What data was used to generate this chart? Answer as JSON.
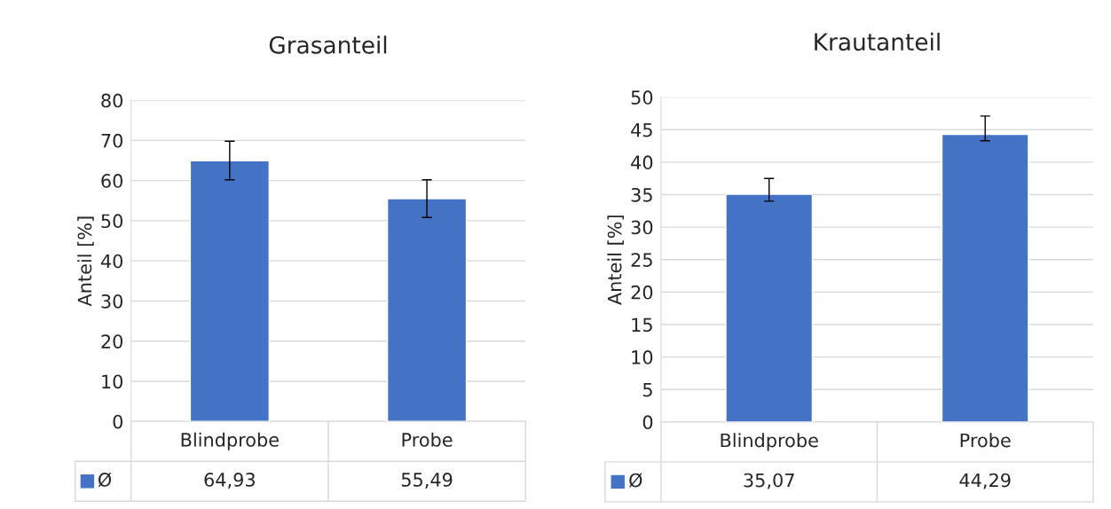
{
  "chart_data": [
    {
      "type": "bar",
      "title": "Grasanteil",
      "ylabel": "Anteil [%]",
      "categories": [
        "Blindprobe",
        "Probe"
      ],
      "series": [
        {
          "name": "Ø",
          "color": "#4472c4",
          "values": [
            64.93,
            55.49
          ],
          "value_labels": [
            "64,93",
            "55,49"
          ],
          "errors": [
            [
              60.2,
              69.8
            ],
            [
              50.8,
              60.2
            ]
          ]
        }
      ],
      "ylim": [
        0,
        80
      ],
      "yticks": [
        0,
        10,
        20,
        30,
        40,
        50,
        60,
        70,
        80
      ],
      "grid": "y",
      "legend": "bottom"
    },
    {
      "type": "bar",
      "title": "Krautanteil",
      "ylabel": "Anteil [%]",
      "categories": [
        "Blindprobe",
        "Probe"
      ],
      "series": [
        {
          "name": "Ø",
          "color": "#4472c4",
          "values": [
            35.07,
            44.29
          ],
          "value_labels": [
            "35,07",
            "44,29"
          ],
          "errors": [
            [
              34.0,
              37.5
            ],
            [
              43.3,
              47.1
            ]
          ]
        }
      ],
      "ylim": [
        0,
        50
      ],
      "yticks": [
        0,
        5,
        10,
        15,
        20,
        25,
        30,
        35,
        40,
        45,
        50
      ],
      "grid": "y",
      "legend": "bottom"
    }
  ]
}
